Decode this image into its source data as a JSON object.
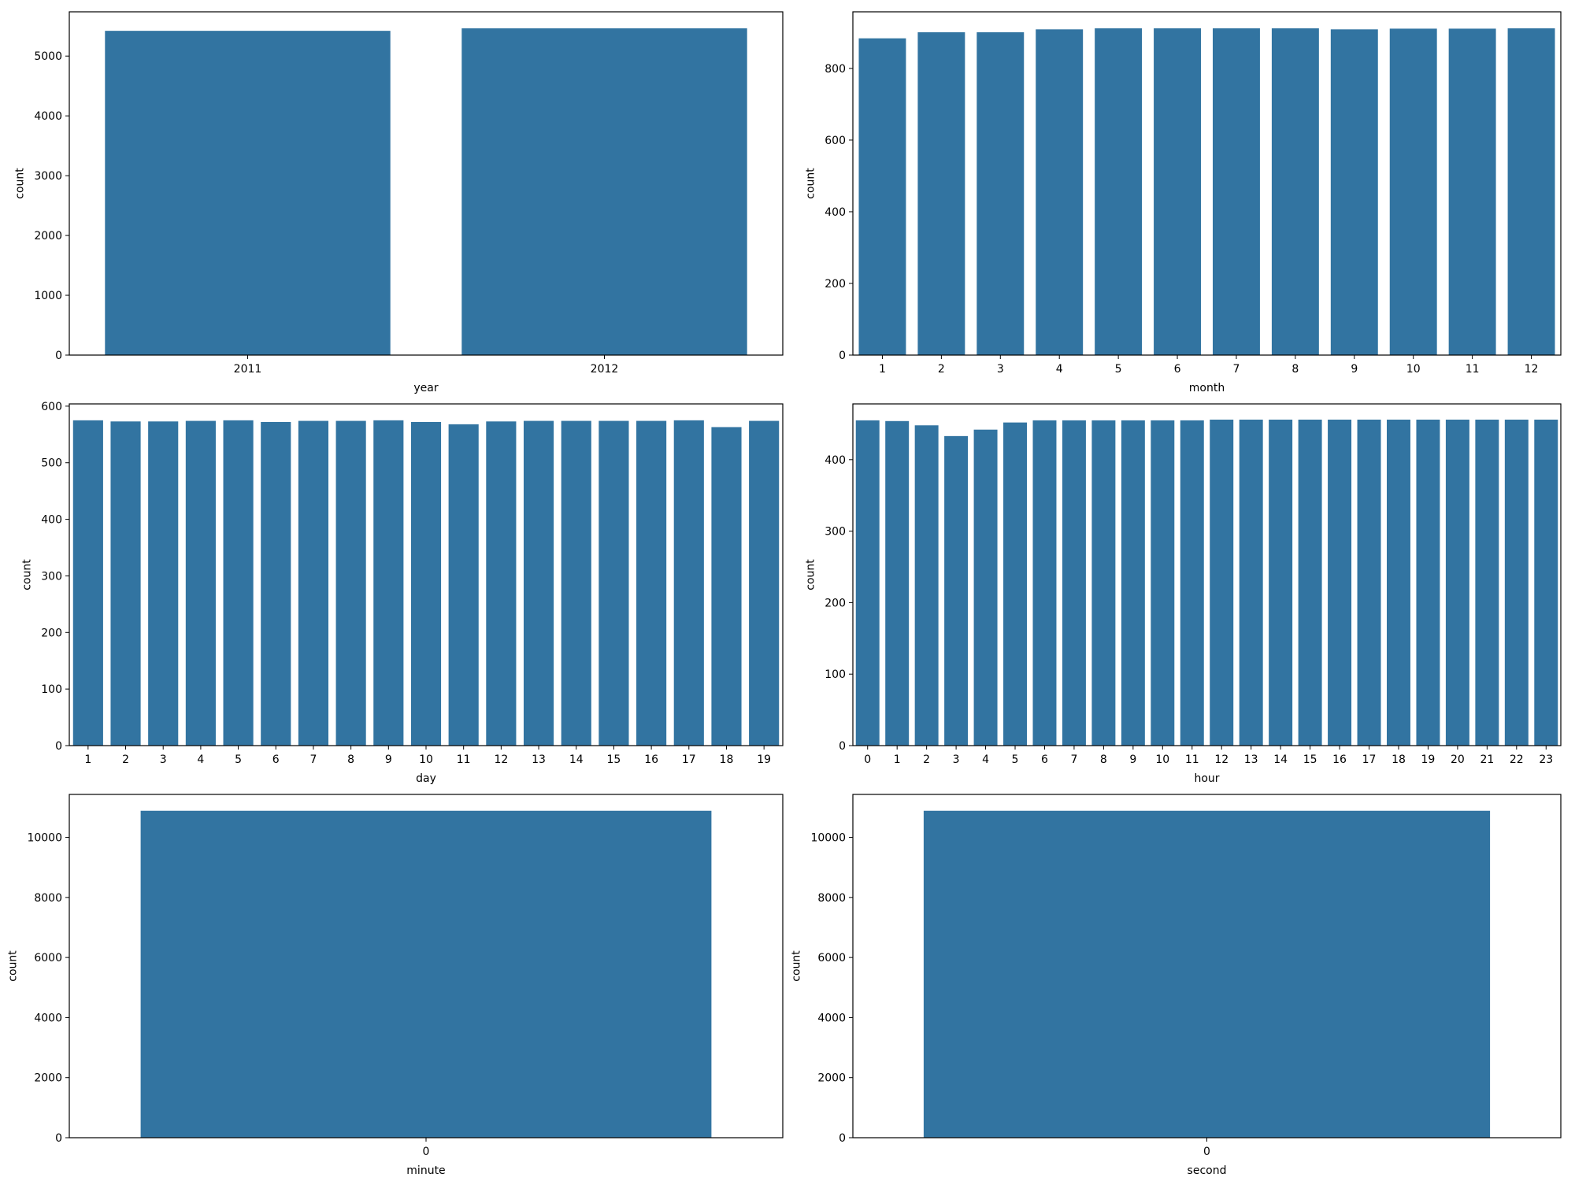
{
  "style": {
    "bar_color": "#3274a1",
    "axis_color": "#000000",
    "background": "#ffffff"
  },
  "chart_data": [
    {
      "type": "bar",
      "categories": [
        "2011",
        "2012"
      ],
      "values": [
        5422,
        5464
      ],
      "xlabel": "year",
      "ylabel": "count",
      "ylim": [
        0,
        5740
      ],
      "yticks": [
        0,
        1000,
        2000,
        3000,
        4000,
        5000
      ],
      "grid": false
    },
    {
      "type": "bar",
      "categories": [
        "1",
        "2",
        "3",
        "4",
        "5",
        "6",
        "7",
        "8",
        "9",
        "10",
        "11",
        "12"
      ],
      "values": [
        884,
        901,
        901,
        909,
        912,
        912,
        912,
        912,
        909,
        911,
        911,
        912
      ],
      "xlabel": "month",
      "ylabel": "count",
      "ylim": [
        0,
        958
      ],
      "yticks": [
        0,
        200,
        400,
        600,
        800
      ],
      "grid": false
    },
    {
      "type": "bar",
      "categories": [
        "1",
        "2",
        "3",
        "4",
        "5",
        "6",
        "7",
        "8",
        "9",
        "10",
        "11",
        "12",
        "13",
        "14",
        "15",
        "16",
        "17",
        "18",
        "19"
      ],
      "values": [
        575,
        573,
        573,
        574,
        575,
        572,
        574,
        574,
        575,
        572,
        568,
        573,
        574,
        574,
        574,
        574,
        575,
        563,
        574
      ],
      "xlabel": "day",
      "ylabel": "count",
      "ylim": [
        0,
        604
      ],
      "yticks": [
        0,
        100,
        200,
        300,
        400,
        500,
        600
      ],
      "grid": false
    },
    {
      "type": "bar",
      "categories": [
        "0",
        "1",
        "2",
        "3",
        "4",
        "5",
        "6",
        "7",
        "8",
        "9",
        "10",
        "11",
        "12",
        "13",
        "14",
        "15",
        "16",
        "17",
        "18",
        "19",
        "20",
        "21",
        "22",
        "23"
      ],
      "values": [
        455,
        454,
        448,
        433,
        442,
        452,
        455,
        455,
        455,
        455,
        455,
        455,
        456,
        456,
        456,
        456,
        456,
        456,
        456,
        456,
        456,
        456,
        456,
        456
      ],
      "xlabel": "hour",
      "ylabel": "count",
      "ylim": [
        0,
        478
      ],
      "yticks": [
        0,
        100,
        200,
        300,
        400
      ],
      "grid": false
    },
    {
      "type": "bar",
      "categories": [
        "0"
      ],
      "values": [
        10886
      ],
      "xlabel": "minute",
      "ylabel": "count",
      "ylim": [
        0,
        11430
      ],
      "yticks": [
        0,
        2000,
        4000,
        6000,
        8000,
        10000
      ],
      "grid": false
    },
    {
      "type": "bar",
      "categories": [
        "0"
      ],
      "values": [
        10886
      ],
      "xlabel": "second",
      "ylabel": "count",
      "ylim": [
        0,
        11430
      ],
      "yticks": [
        0,
        2000,
        4000,
        6000,
        8000,
        10000
      ],
      "grid": false
    }
  ]
}
